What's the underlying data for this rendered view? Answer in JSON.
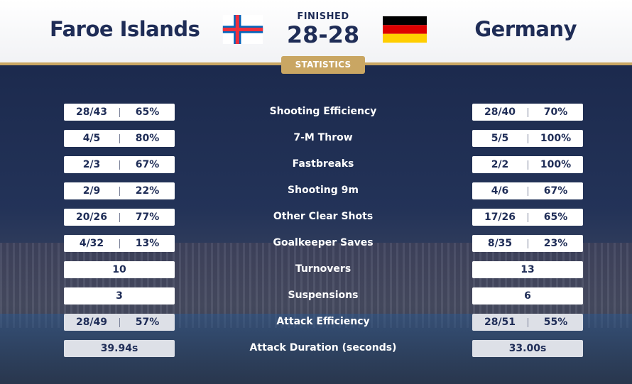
{
  "match": {
    "home_team": "Faroe Islands",
    "away_team": "Germany",
    "status": "FINISHED",
    "score": "28-28",
    "tab_label": "STATISTICS",
    "home_flag_icon": "faroe-islands-flag-icon",
    "away_flag_icon": "germany-flag-icon"
  },
  "colors": {
    "navy": "#1f2d57",
    "gold": "#c9a663",
    "faroe_white": "#ffffff",
    "faroe_blue": "#0065bd",
    "faroe_red": "#ef303e",
    "germany_black": "#000000",
    "germany_red": "#dd0000",
    "germany_gold": "#ffce00"
  },
  "stats": [
    {
      "label": "Shooting Efficiency",
      "home": [
        "28/43",
        "65%"
      ],
      "away": [
        "28/40",
        "70%"
      ]
    },
    {
      "label": "7-M Throw",
      "home": [
        "4/5",
        "80%"
      ],
      "away": [
        "5/5",
        "100%"
      ]
    },
    {
      "label": "Fastbreaks",
      "home": [
        "2/3",
        "67%"
      ],
      "away": [
        "2/2",
        "100%"
      ]
    },
    {
      "label": "Shooting 9m",
      "home": [
        "2/9",
        "22%"
      ],
      "away": [
        "4/6",
        "67%"
      ]
    },
    {
      "label": "Other Clear Shots",
      "home": [
        "20/26",
        "77%"
      ],
      "away": [
        "17/26",
        "65%"
      ]
    },
    {
      "label": "Goalkeeper Saves",
      "home": [
        "4/32",
        "13%"
      ],
      "away": [
        "8/35",
        "23%"
      ]
    },
    {
      "label": "Turnovers",
      "home": [
        "10"
      ],
      "away": [
        "13"
      ]
    },
    {
      "label": "Suspensions",
      "home": [
        "3"
      ],
      "away": [
        "6"
      ]
    },
    {
      "label": "Attack Efficiency",
      "home": [
        "28/49",
        "57%"
      ],
      "away": [
        "28/51",
        "55%"
      ]
    },
    {
      "label": "Attack Duration (seconds)",
      "home": [
        "39.94s"
      ],
      "away": [
        "33.00s"
      ]
    }
  ]
}
